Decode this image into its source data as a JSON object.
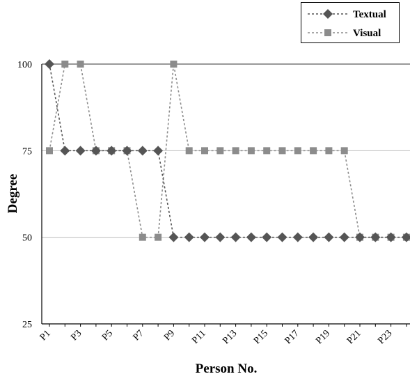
{
  "chart_data": {
    "type": "line",
    "title": "",
    "xlabel": "Person No.",
    "ylabel": "Degree",
    "ylim": [
      25,
      100
    ],
    "yticks": [
      25,
      50,
      75,
      100
    ],
    "categories": [
      "P1",
      "P2",
      "P3",
      "P4",
      "P5",
      "P6",
      "P7",
      "P8",
      "P9",
      "P10",
      "P11",
      "P12",
      "P13",
      "P14",
      "P15",
      "P16",
      "P17",
      "P18",
      "P19",
      "P20",
      "P21",
      "P22",
      "P23",
      "P24"
    ],
    "xtick_labels": [
      "P1",
      "P3",
      "P5",
      "P7",
      "P9",
      "P11",
      "P13",
      "P15",
      "P17",
      "P19",
      "P21",
      "P23"
    ],
    "grid": "horizontal",
    "legend_position": "top-right",
    "series": [
      {
        "name": "Textual",
        "marker": "diamond",
        "color": "#555555",
        "values": [
          100,
          75,
          75,
          75,
          75,
          75,
          75,
          75,
          50,
          50,
          50,
          50,
          50,
          50,
          50,
          50,
          50,
          50,
          50,
          50,
          50,
          50,
          50,
          50
        ]
      },
      {
        "name": "Visual",
        "marker": "square",
        "color": "#8c8c8c",
        "values": [
          75,
          100,
          100,
          75,
          75,
          75,
          50,
          50,
          100,
          75,
          75,
          75,
          75,
          75,
          75,
          75,
          75,
          75,
          75,
          75,
          50,
          50,
          50,
          50
        ]
      }
    ]
  }
}
